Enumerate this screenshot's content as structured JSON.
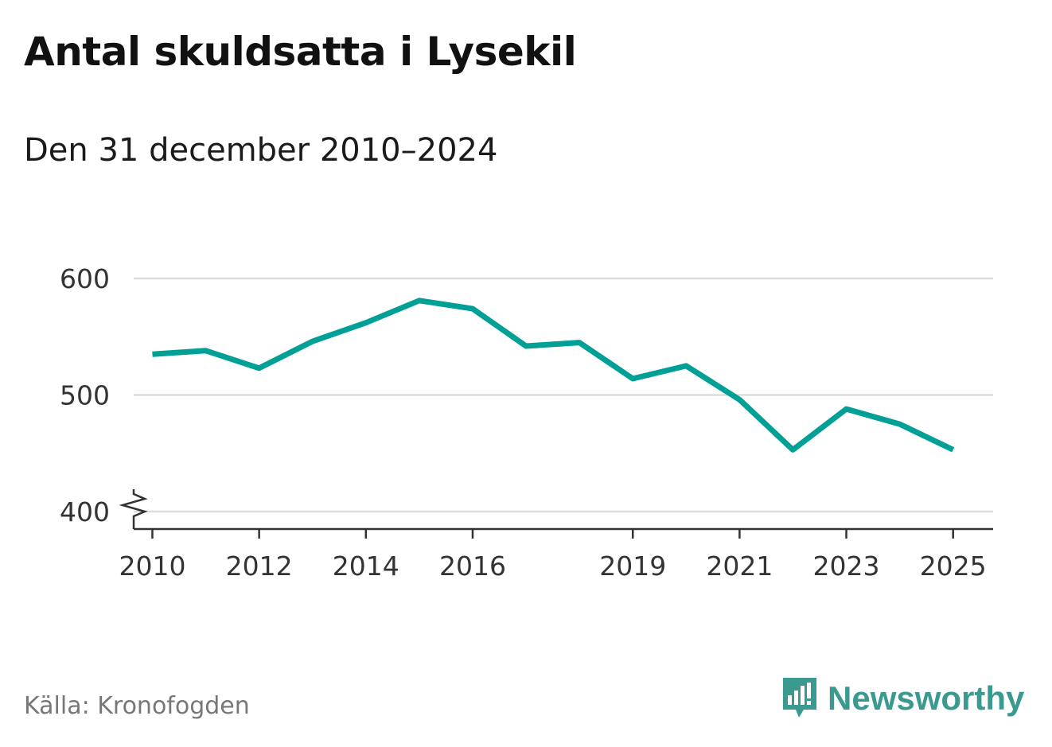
{
  "header": {
    "title": "Antal skuldsatta i Lysekil",
    "subtitle": "Den 31 december 2010–2024"
  },
  "footer": {
    "source": "Källa: Kronofogden",
    "brand": "Newsworthy",
    "brand_icon": "newsworthy-logo-icon",
    "brand_color": "#3a9a8f"
  },
  "chart_data": {
    "type": "line",
    "title": "Antal skuldsatta i Lysekil",
    "subtitle": "Den 31 december 2010–2024",
    "xlabel": "",
    "ylabel": "",
    "x": [
      2010,
      2011,
      2012,
      2013,
      2014,
      2015,
      2016,
      2017,
      2018,
      2019,
      2020,
      2021,
      2022,
      2023,
      2024,
      2025
    ],
    "series": [
      {
        "values": [
          535,
          538,
          523,
          546,
          562,
          581,
          574,
          542,
          545,
          514,
          525,
          496,
          453,
          488,
          475,
          453
        ],
        "color": "#00a096"
      }
    ],
    "xlim": [
      2009.65,
      2025.75
    ],
    "ylim": [
      385,
      600
    ],
    "y_ticks": [
      400,
      500,
      600
    ],
    "x_ticks": [
      2010,
      2012,
      2014,
      2016,
      2019,
      2021,
      2023,
      2025
    ],
    "y_axis_break": true,
    "grid": "horizontal",
    "gridline_color": "#dddddd",
    "axis_color": "#333333"
  }
}
